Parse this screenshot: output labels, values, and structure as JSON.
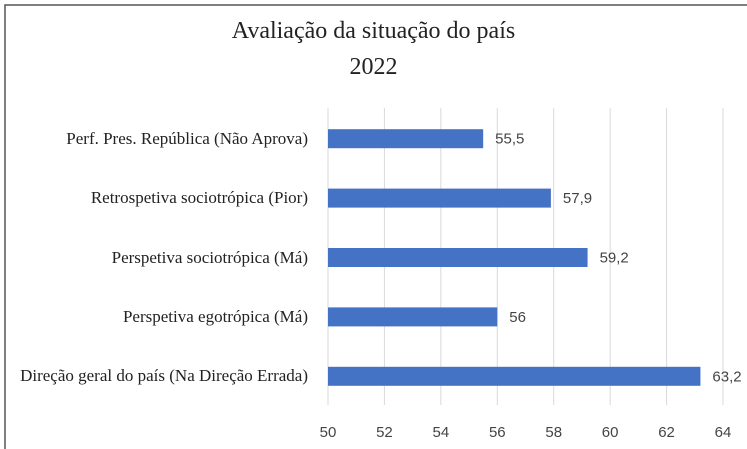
{
  "chart_data": {
    "type": "bar",
    "orientation": "horizontal",
    "title": "Avaliação da situação do país",
    "subtitle": "2022",
    "categories": [
      "Perf. Pres. República (Não Aprova)",
      "Retrospetiva sociotrópica (Pior)",
      "Perspetiva sociotrópica (Má)",
      "Perspetiva egotrópica (Má)",
      "Direção geral do país (Na Direção Errada)"
    ],
    "values": [
      55.5,
      57.9,
      59.2,
      56,
      63.2
    ],
    "value_labels": [
      "55,5",
      "57,9",
      "59,2",
      "56",
      "63,2"
    ],
    "color": "#4472c4",
    "xlim": [
      50,
      64
    ],
    "xticks": [
      50,
      52,
      54,
      56,
      58,
      60,
      62,
      64
    ],
    "grid": true
  }
}
